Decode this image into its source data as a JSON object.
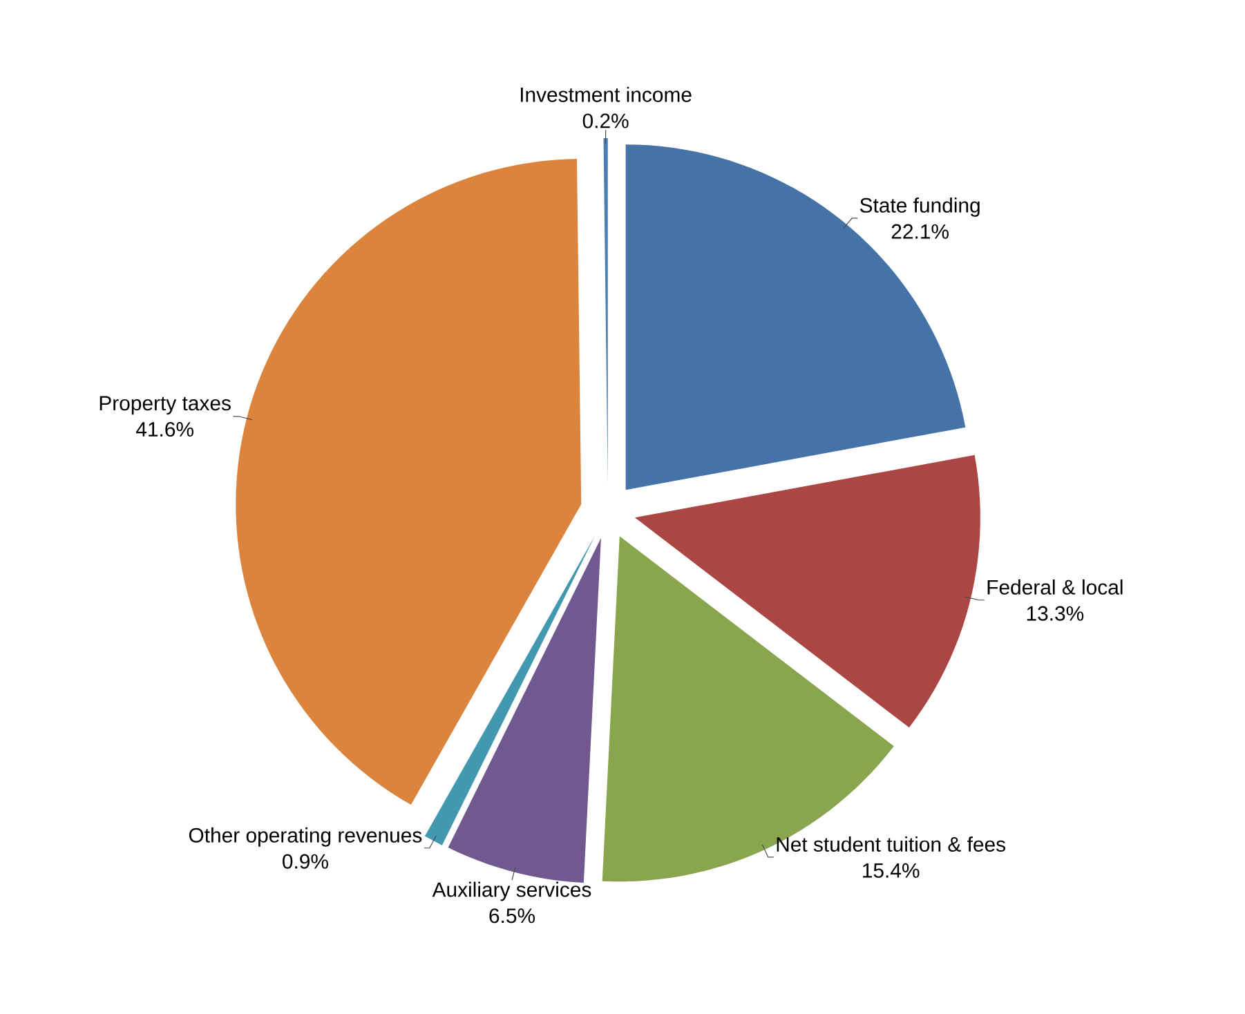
{
  "chart_data": {
    "type": "pie",
    "categories": [
      "State funding",
      "Federal & local",
      "Net student tuition & fees",
      "Auxiliary services",
      "Other operating revenues",
      "Property taxes",
      "Investment income"
    ],
    "values": [
      22.1,
      13.3,
      15.4,
      6.5,
      0.9,
      41.6,
      0.2
    ],
    "value_labels": [
      "22.1%",
      "13.3%",
      "15.4%",
      "6.5%",
      "0.9%",
      "41.6%",
      "0.2%"
    ],
    "colors": [
      "#4572a7",
      "#aa4643",
      "#89a54e",
      "#71588f",
      "#4198af",
      "#db843d",
      "#4a7fb5"
    ]
  }
}
